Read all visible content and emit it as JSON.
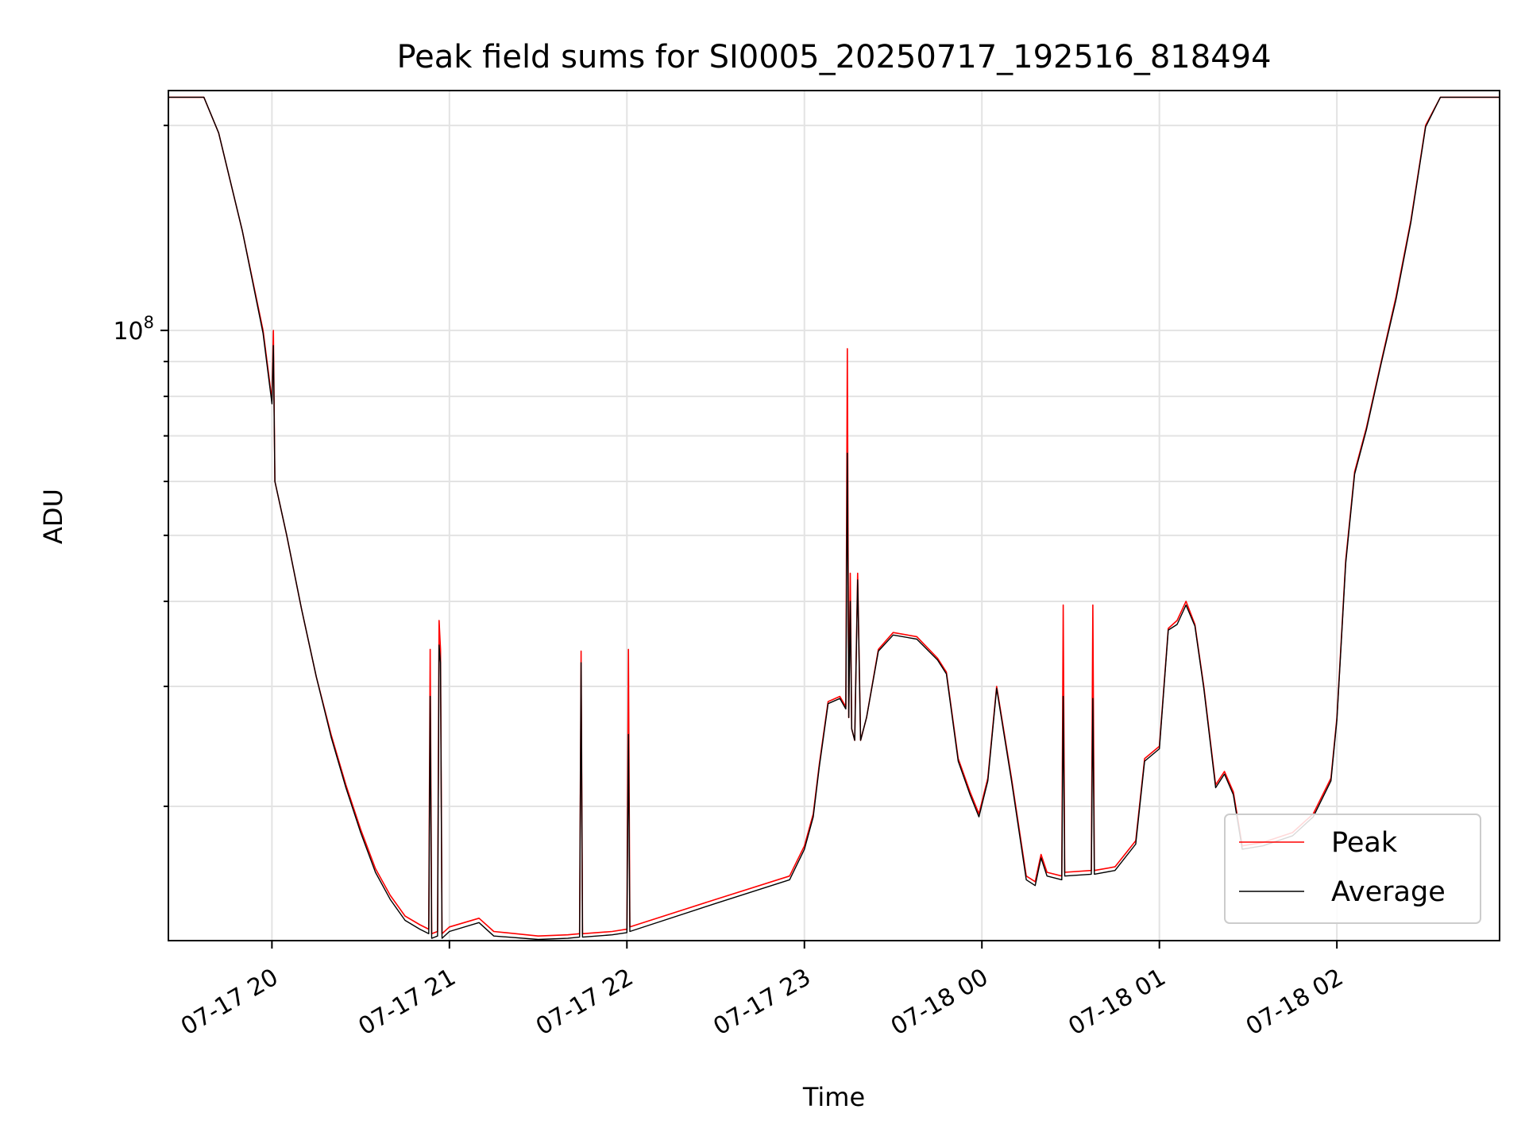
{
  "chart_data": {
    "type": "line",
    "title": "Peak field sums for SI0005_20250717_192516_818494",
    "xlabel": "Time",
    "ylabel": "ADU",
    "x_axis_type": "time",
    "y_scale": "log",
    "xlim": [
      "2025-07-17 19:25",
      "2025-07-18 02:55"
    ],
    "ylim": [
      12700000,
      225000000
    ],
    "xticks": [
      {
        "value": "2025-07-17 20:00",
        "label": "07-17 20"
      },
      {
        "value": "2025-07-17 21:00",
        "label": "07-17 21"
      },
      {
        "value": "2025-07-17 22:00",
        "label": "07-17 22"
      },
      {
        "value": "2025-07-17 23:00",
        "label": "07-17 23"
      },
      {
        "value": "2025-07-18 00:00",
        "label": "07-18 00"
      },
      {
        "value": "2025-07-18 01:00",
        "label": "07-18 01"
      },
      {
        "value": "2025-07-18 02:00",
        "label": "07-18 02"
      }
    ],
    "yticks_major": [
      {
        "value": 100000000,
        "label_base": "10",
        "label_exp": "8"
      }
    ],
    "grid": true,
    "legend_position": "lower-right",
    "series": [
      {
        "name": "Peak",
        "color": "#ff0000",
        "points": [
          [
            "2025-07-17 19:25",
            220000000
          ],
          [
            "2025-07-17 19:37",
            220000000
          ],
          [
            "2025-07-17 19:42",
            195000000
          ],
          [
            "2025-07-17 19:50",
            140000000
          ],
          [
            "2025-07-17 19:57",
            100000000
          ],
          [
            "2025-07-17 20:00",
            79000000
          ],
          [
            "2025-07-17 20:00:30",
            100000000
          ],
          [
            "2025-07-17 20:01",
            60000000
          ],
          [
            "2025-07-17 20:05",
            50000000
          ],
          [
            "2025-07-17 20:10",
            39000000
          ],
          [
            "2025-07-17 20:15",
            31000000
          ],
          [
            "2025-07-17 20:20",
            25500000
          ],
          [
            "2025-07-17 20:25",
            21500000
          ],
          [
            "2025-07-17 20:30",
            18500000
          ],
          [
            "2025-07-17 20:35",
            16200000
          ],
          [
            "2025-07-17 20:40",
            14800000
          ],
          [
            "2025-07-17 20:45",
            13800000
          ],
          [
            "2025-07-17 20:50",
            13400000
          ],
          [
            "2025-07-17 20:53",
            13200000
          ],
          [
            "2025-07-17 20:53:30",
            34000000
          ],
          [
            "2025-07-17 20:54",
            13000000
          ],
          [
            "2025-07-17 20:56",
            13100000
          ],
          [
            "2025-07-17 20:56:30",
            37500000
          ],
          [
            "2025-07-17 20:57",
            34000000
          ],
          [
            "2025-07-17 20:57:30",
            13000000
          ],
          [
            "2025-07-17 21:00",
            13300000
          ],
          [
            "2025-07-17 21:10",
            13700000
          ],
          [
            "2025-07-17 21:15",
            13100000
          ],
          [
            "2025-07-17 21:30",
            12900000
          ],
          [
            "2025-07-17 21:40",
            12950000
          ],
          [
            "2025-07-17 21:44",
            13000000
          ],
          [
            "2025-07-17 21:44:30",
            33800000
          ],
          [
            "2025-07-17 21:45",
            13000000
          ],
          [
            "2025-07-17 21:55",
            13100000
          ],
          [
            "2025-07-17 22:00",
            13200000
          ],
          [
            "2025-07-17 22:00:30",
            34000000
          ],
          [
            "2025-07-17 22:01",
            13300000
          ],
          [
            "2025-07-17 22:30",
            14600000
          ],
          [
            "2025-07-17 22:55",
            15800000
          ],
          [
            "2025-07-17 23:00",
            17500000
          ],
          [
            "2025-07-17 23:03",
            19500000
          ],
          [
            "2025-07-17 23:05",
            23000000
          ],
          [
            "2025-07-17 23:08",
            28500000
          ],
          [
            "2025-07-17 23:12",
            29000000
          ],
          [
            "2025-07-17 23:14",
            28000000
          ],
          [
            "2025-07-17 23:14:30",
            94000000
          ],
          [
            "2025-07-17 23:15",
            27000000
          ],
          [
            "2025-07-17 23:15:30",
            44000000
          ],
          [
            "2025-07-17 23:16",
            26000000
          ],
          [
            "2025-07-17 23:17",
            25000000
          ],
          [
            "2025-07-17 23:18",
            44000000
          ],
          [
            "2025-07-17 23:19",
            25000000
          ],
          [
            "2025-07-17 23:21",
            27000000
          ],
          [
            "2025-07-17 23:25",
            34000000
          ],
          [
            "2025-07-17 23:30",
            36000000
          ],
          [
            "2025-07-17 23:38",
            35500000
          ],
          [
            "2025-07-17 23:45",
            33000000
          ],
          [
            "2025-07-17 23:48",
            31500000
          ],
          [
            "2025-07-17 23:52",
            23500000
          ],
          [
            "2025-07-17 23:56",
            21000000
          ],
          [
            "2025-07-17 23:59",
            19500000
          ],
          [
            "2025-07-18 00:02",
            22000000
          ],
          [
            "2025-07-18 00:05",
            30000000
          ],
          [
            "2025-07-18 00:10",
            22000000
          ],
          [
            "2025-07-18 00:15",
            15800000
          ],
          [
            "2025-07-18 00:18",
            15500000
          ],
          [
            "2025-07-18 00:20",
            17000000
          ],
          [
            "2025-07-18 00:22",
            16000000
          ],
          [
            "2025-07-18 00:27",
            15800000
          ],
          [
            "2025-07-18 00:27:30",
            39500000
          ],
          [
            "2025-07-18 00:28",
            16000000
          ],
          [
            "2025-07-18 00:37",
            16100000
          ],
          [
            "2025-07-18 00:37:30",
            39500000
          ],
          [
            "2025-07-18 00:38",
            16100000
          ],
          [
            "2025-07-18 00:45",
            16300000
          ],
          [
            "2025-07-18 00:52",
            17800000
          ],
          [
            "2025-07-18 00:55",
            23500000
          ],
          [
            "2025-07-18 01:00",
            24500000
          ],
          [
            "2025-07-18 01:03",
            36500000
          ],
          [
            "2025-07-18 01:06",
            37500000
          ],
          [
            "2025-07-18 01:09",
            40000000
          ],
          [
            "2025-07-18 01:12",
            37000000
          ],
          [
            "2025-07-18 01:15",
            30000000
          ],
          [
            "2025-07-18 01:19",
            21500000
          ],
          [
            "2025-07-18 01:22",
            22500000
          ],
          [
            "2025-07-18 01:25",
            21000000
          ],
          [
            "2025-07-18 01:28",
            17500000
          ],
          [
            "2025-07-18 01:35",
            17700000
          ],
          [
            "2025-07-18 01:45",
            18300000
          ],
          [
            "2025-07-18 01:52",
            19500000
          ],
          [
            "2025-07-18 01:58",
            22000000
          ],
          [
            "2025-07-18 02:00",
            27000000
          ],
          [
            "2025-07-18 02:03",
            46000000
          ],
          [
            "2025-07-18 02:06",
            62000000
          ],
          [
            "2025-07-18 02:10",
            72000000
          ],
          [
            "2025-07-18 02:15",
            90000000
          ],
          [
            "2025-07-18 02:20",
            112000000
          ],
          [
            "2025-07-18 02:25",
            145000000
          ],
          [
            "2025-07-18 02:30",
            200000000
          ],
          [
            "2025-07-18 02:35",
            220000000
          ],
          [
            "2025-07-18 02:55",
            220000000
          ]
        ]
      },
      {
        "name": "Average",
        "color": "#000000",
        "points": [
          [
            "2025-07-17 19:25",
            220000000
          ],
          [
            "2025-07-17 19:37",
            220000000
          ],
          [
            "2025-07-17 19:42",
            195000000
          ],
          [
            "2025-07-17 19:50",
            140000000
          ],
          [
            "2025-07-17 19:57",
            99000000
          ],
          [
            "2025-07-17 20:00",
            78000000
          ],
          [
            "2025-07-17 20:00:30",
            95000000
          ],
          [
            "2025-07-17 20:01",
            60000000
          ],
          [
            "2025-07-17 20:05",
            50000000
          ],
          [
            "2025-07-17 20:10",
            39000000
          ],
          [
            "2025-07-17 20:15",
            31000000
          ],
          [
            "2025-07-17 20:20",
            25300000
          ],
          [
            "2025-07-17 20:25",
            21300000
          ],
          [
            "2025-07-17 20:30",
            18300000
          ],
          [
            "2025-07-17 20:35",
            16000000
          ],
          [
            "2025-07-17 20:40",
            14600000
          ],
          [
            "2025-07-17 20:45",
            13600000
          ],
          [
            "2025-07-17 20:50",
            13200000
          ],
          [
            "2025-07-17 20:53",
            13000000
          ],
          [
            "2025-07-17 20:53:30",
            29000000
          ],
          [
            "2025-07-17 20:54",
            12800000
          ],
          [
            "2025-07-17 20:56",
            12900000
          ],
          [
            "2025-07-17 20:56:30",
            34500000
          ],
          [
            "2025-07-17 20:57",
            32500000
          ],
          [
            "2025-07-17 20:57:30",
            12800000
          ],
          [
            "2025-07-17 21:00",
            13100000
          ],
          [
            "2025-07-17 21:10",
            13500000
          ],
          [
            "2025-07-17 21:15",
            12900000
          ],
          [
            "2025-07-17 21:30",
            12750000
          ],
          [
            "2025-07-17 21:40",
            12800000
          ],
          [
            "2025-07-17 21:44",
            12850000
          ],
          [
            "2025-07-17 21:44:30",
            32500000
          ],
          [
            "2025-07-17 21:45",
            12850000
          ],
          [
            "2025-07-17 21:55",
            12950000
          ],
          [
            "2025-07-17 22:00",
            13050000
          ],
          [
            "2025-07-17 22:00:30",
            25500000
          ],
          [
            "2025-07-17 22:01",
            13100000
          ],
          [
            "2025-07-17 22:30",
            14400000
          ],
          [
            "2025-07-17 22:55",
            15600000
          ],
          [
            "2025-07-17 23:00",
            17300000
          ],
          [
            "2025-07-17 23:03",
            19300000
          ],
          [
            "2025-07-17 23:05",
            22800000
          ],
          [
            "2025-07-17 23:08",
            28300000
          ],
          [
            "2025-07-17 23:12",
            28800000
          ],
          [
            "2025-07-17 23:14",
            27800000
          ],
          [
            "2025-07-17 23:14:30",
            66000000
          ],
          [
            "2025-07-17 23:15",
            27000000
          ],
          [
            "2025-07-17 23:15:30",
            40000000
          ],
          [
            "2025-07-17 23:16",
            26000000
          ],
          [
            "2025-07-17 23:17",
            25000000
          ],
          [
            "2025-07-17 23:18",
            43000000
          ],
          [
            "2025-07-17 23:19",
            25000000
          ],
          [
            "2025-07-17 23:21",
            27000000
          ],
          [
            "2025-07-17 23:25",
            33800000
          ],
          [
            "2025-07-17 23:30",
            35700000
          ],
          [
            "2025-07-17 23:38",
            35200000
          ],
          [
            "2025-07-17 23:45",
            32800000
          ],
          [
            "2025-07-17 23:48",
            31300000
          ],
          [
            "2025-07-17 23:52",
            23300000
          ],
          [
            "2025-07-17 23:56",
            20800000
          ],
          [
            "2025-07-17 23:59",
            19300000
          ],
          [
            "2025-07-18 00:02",
            21800000
          ],
          [
            "2025-07-18 00:05",
            29800000
          ],
          [
            "2025-07-18 00:10",
            21800000
          ],
          [
            "2025-07-18 00:15",
            15600000
          ],
          [
            "2025-07-18 00:18",
            15300000
          ],
          [
            "2025-07-18 00:20",
            16800000
          ],
          [
            "2025-07-18 00:22",
            15800000
          ],
          [
            "2025-07-18 00:27",
            15600000
          ],
          [
            "2025-07-18 00:27:30",
            29000000
          ],
          [
            "2025-07-18 00:28",
            15800000
          ],
          [
            "2025-07-18 00:37",
            15900000
          ],
          [
            "2025-07-18 00:37:30",
            28800000
          ],
          [
            "2025-07-18 00:38",
            15900000
          ],
          [
            "2025-07-18 00:45",
            16100000
          ],
          [
            "2025-07-18 00:52",
            17600000
          ],
          [
            "2025-07-18 00:55",
            23300000
          ],
          [
            "2025-07-18 01:00",
            24300000
          ],
          [
            "2025-07-18 01:03",
            36300000
          ],
          [
            "2025-07-18 01:06",
            37000000
          ],
          [
            "2025-07-18 01:09",
            39500000
          ],
          [
            "2025-07-18 01:12",
            36800000
          ],
          [
            "2025-07-18 01:15",
            29800000
          ],
          [
            "2025-07-18 01:19",
            21300000
          ],
          [
            "2025-07-18 01:22",
            22300000
          ],
          [
            "2025-07-18 01:25",
            20800000
          ],
          [
            "2025-07-18 01:28",
            17300000
          ],
          [
            "2025-07-18 01:35",
            17500000
          ],
          [
            "2025-07-18 01:45",
            18100000
          ],
          [
            "2025-07-18 01:52",
            19300000
          ],
          [
            "2025-07-18 01:58",
            21800000
          ],
          [
            "2025-07-18 02:00",
            26800000
          ],
          [
            "2025-07-18 02:03",
            45500000
          ],
          [
            "2025-07-18 02:06",
            61500000
          ],
          [
            "2025-07-18 02:10",
            71500000
          ],
          [
            "2025-07-18 02:15",
            89500000
          ],
          [
            "2025-07-18 02:20",
            111000000
          ],
          [
            "2025-07-18 02:25",
            144000000
          ],
          [
            "2025-07-18 02:30",
            199000000
          ],
          [
            "2025-07-18 02:35",
            220000000
          ],
          [
            "2025-07-18 02:55",
            220000000
          ]
        ]
      }
    ]
  }
}
